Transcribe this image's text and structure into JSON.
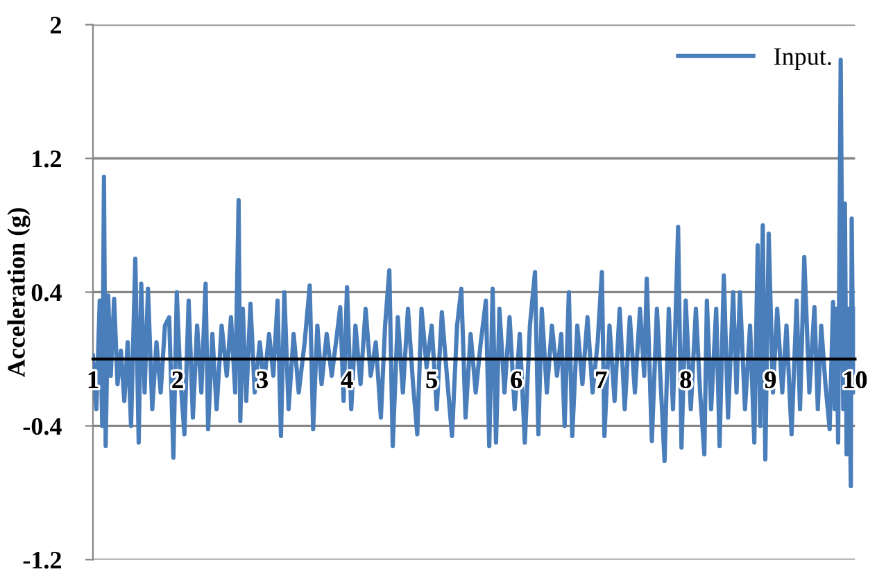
{
  "chart_data": {
    "type": "line",
    "ylabel": "Acceleration (g)",
    "xlim": [
      1,
      10
    ],
    "xticks": [
      1,
      2,
      3,
      4,
      5,
      6,
      7,
      8,
      9,
      10
    ],
    "ylim": [
      -1.2,
      2
    ],
    "yticks": [
      -1.2,
      -0.4,
      0.4,
      1.2,
      2
    ],
    "grid": "y",
    "legend": "top right",
    "marker": "none",
    "line_style": "solid",
    "series": [
      {
        "name": "Input.",
        "color": "#4a7ebb",
        "x": [
          1.0,
          1.04,
          1.08,
          1.11,
          1.13,
          1.15,
          1.18,
          1.21,
          1.25,
          1.29,
          1.33,
          1.37,
          1.41,
          1.45,
          1.5,
          1.54,
          1.57,
          1.61,
          1.65,
          1.7,
          1.75,
          1.8,
          1.85,
          1.9,
          1.95,
          1.99,
          2.03,
          2.08,
          2.13,
          2.18,
          2.23,
          2.28,
          2.33,
          2.36,
          2.41,
          2.46,
          2.52,
          2.58,
          2.63,
          2.68,
          2.72,
          2.74,
          2.77,
          2.81,
          2.86,
          2.91,
          2.97,
          3.02,
          3.08,
          3.13,
          3.18,
          3.22,
          3.26,
          3.31,
          3.37,
          3.43,
          3.5,
          3.56,
          3.6,
          3.65,
          3.7,
          3.76,
          3.82,
          3.87,
          3.92,
          3.96,
          4.0,
          4.05,
          4.1,
          4.16,
          4.22,
          4.28,
          4.34,
          4.4,
          4.45,
          4.5,
          4.54,
          4.6,
          4.66,
          4.72,
          4.78,
          4.83,
          4.88,
          4.94,
          5.0,
          5.06,
          5.12,
          5.18,
          5.24,
          5.3,
          5.35,
          5.4,
          5.46,
          5.52,
          5.58,
          5.64,
          5.68,
          5.72,
          5.76,
          5.8,
          5.86,
          5.92,
          5.98,
          6.04,
          6.1,
          6.16,
          6.22,
          6.26,
          6.3,
          6.36,
          6.42,
          6.48,
          6.53,
          6.57,
          6.62,
          6.66,
          6.72,
          6.78,
          6.84,
          6.9,
          6.96,
          7.01,
          7.04,
          7.1,
          7.16,
          7.22,
          7.28,
          7.34,
          7.4,
          7.46,
          7.51,
          7.54,
          7.6,
          7.66,
          7.71,
          7.75,
          7.8,
          7.85,
          7.91,
          7.95,
          8.0,
          8.06,
          8.12,
          8.17,
          8.22,
          8.25,
          8.3,
          8.36,
          8.4,
          8.45,
          8.5,
          8.56,
          8.6,
          8.64,
          8.7,
          8.76,
          8.81,
          8.85,
          8.88,
          8.91,
          8.94,
          8.98,
          9.03,
          9.08,
          9.14,
          9.19,
          9.25,
          9.31,
          9.35,
          9.4,
          9.46,
          9.52,
          9.56,
          9.6,
          9.65,
          9.7,
          9.74,
          9.76,
          9.78,
          9.8,
          9.83,
          9.86,
          9.88,
          9.9,
          9.92,
          9.95,
          9.96,
          9.98,
          9.99,
          10.0
        ],
        "values": [
          0.02,
          -0.3,
          0.35,
          -0.4,
          1.09,
          -0.52,
          0.38,
          -0.1,
          0.36,
          -0.15,
          0.05,
          -0.25,
          0.1,
          -0.4,
          0.6,
          -0.5,
          0.45,
          -0.2,
          0.42,
          -0.3,
          0.1,
          -0.2,
          0.2,
          0.25,
          -0.59,
          0.4,
          -0.1,
          -0.45,
          0.35,
          -0.35,
          0.2,
          -0.2,
          0.45,
          -0.42,
          0.15,
          -0.3,
          0.2,
          -0.1,
          0.25,
          -0.2,
          0.95,
          -0.37,
          0.3,
          -0.25,
          0.33,
          -0.2,
          0.1,
          -0.15,
          0.15,
          -0.1,
          0.35,
          -0.46,
          0.4,
          -0.3,
          0.15,
          -0.2,
          0.1,
          0.44,
          -0.42,
          0.2,
          -0.15,
          0.15,
          -0.1,
          0.1,
          0.31,
          -0.25,
          0.43,
          -0.3,
          0.2,
          -0.15,
          0.3,
          -0.1,
          0.1,
          -0.35,
          0.2,
          0.53,
          -0.52,
          0.25,
          -0.2,
          0.3,
          -0.15,
          -0.45,
          0.3,
          -0.05,
          0.2,
          -0.3,
          0.28,
          -0.1,
          -0.46,
          0.2,
          0.42,
          -0.35,
          0.15,
          -0.2,
          0.1,
          0.35,
          -0.52,
          0.42,
          -0.5,
          0.3,
          -0.2,
          0.25,
          -0.3,
          0.15,
          -0.5,
          0.2,
          0.52,
          -0.45,
          0.3,
          -0.2,
          0.2,
          -0.1,
          0.15,
          -0.4,
          0.4,
          -0.46,
          0.2,
          -0.15,
          0.25,
          -0.2,
          0.1,
          0.52,
          -0.46,
          0.2,
          -0.25,
          0.3,
          -0.3,
          0.25,
          -0.2,
          0.3,
          -0.1,
          0.48,
          -0.49,
          0.3,
          -0.2,
          -0.61,
          0.3,
          -0.3,
          0.79,
          -0.53,
          0.35,
          -0.3,
          0.3,
          -0.2,
          -0.57,
          0.35,
          -0.3,
          0.3,
          -0.52,
          0.5,
          -0.35,
          0.4,
          -0.2,
          0.4,
          -0.3,
          0.2,
          -0.5,
          0.68,
          -0.4,
          0.8,
          -0.6,
          0.75,
          -0.2,
          0.3,
          -0.2,
          0.2,
          -0.45,
          0.35,
          -0.3,
          0.61,
          -0.2,
          0.31,
          -0.3,
          0.2,
          -0.15,
          -0.42,
          0.34,
          -0.3,
          0.3,
          -0.5,
          1.79,
          -0.3,
          0.93,
          -0.57,
          0.3,
          -0.76,
          0.84,
          -0.2,
          0.3,
          0.0
        ]
      }
    ]
  }
}
